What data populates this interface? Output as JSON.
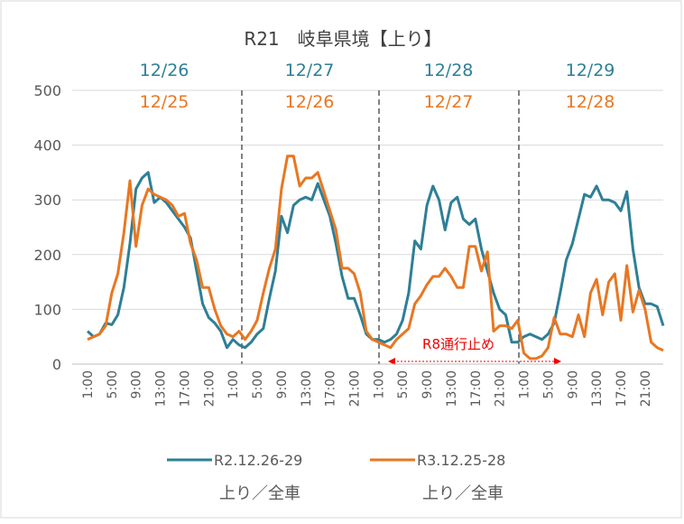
{
  "chart_data": {
    "type": "line",
    "title": "R21　岐阜県境【上り】",
    "categories": [
      "1:00",
      null,
      null,
      null,
      "5:00",
      null,
      null,
      null,
      "9:00",
      null,
      null,
      null,
      "13:00",
      null,
      null,
      null,
      "17:00",
      null,
      null,
      null,
      "21:00",
      null,
      null,
      null,
      "1:00",
      null,
      null,
      null,
      "5:00",
      null,
      null,
      null,
      "9:00",
      null,
      null,
      null,
      "13:00",
      null,
      null,
      null,
      "17:00",
      null,
      null,
      null,
      "21:00",
      null,
      null,
      null,
      "1:00",
      null,
      null,
      null,
      "5:00",
      null,
      null,
      null,
      "9:00",
      null,
      null,
      null,
      "13:00",
      null,
      null,
      null,
      "17:00",
      null,
      null,
      null,
      "21:00",
      null,
      null,
      null,
      "1:00",
      null,
      null,
      null,
      "5:00",
      null,
      null,
      null,
      "9:00",
      null,
      null,
      null,
      "13:00",
      null,
      null,
      null,
      "17:00",
      null,
      null,
      null,
      "21:00",
      null,
      null,
      null
    ],
    "series": [
      {
        "name": "R2.12.26-29",
        "sublabel": "上り／全車",
        "color": "#2e7f96",
        "values": [
          60,
          50,
          55,
          75,
          72,
          90,
          140,
          220,
          320,
          340,
          350,
          295,
          305,
          295,
          280,
          265,
          250,
          230,
          170,
          110,
          85,
          75,
          60,
          30,
          45,
          35,
          30,
          40,
          55,
          65,
          120,
          170,
          270,
          240,
          290,
          300,
          305,
          300,
          330,
          300,
          270,
          220,
          160,
          120,
          120,
          90,
          55,
          45,
          45,
          40,
          45,
          55,
          80,
          130,
          225,
          210,
          290,
          325,
          300,
          245,
          295,
          305,
          265,
          255,
          265,
          210,
          170,
          130,
          100,
          90,
          40,
          40,
          50,
          55,
          50,
          45,
          55,
          75,
          130,
          190,
          220,
          265,
          310,
          305,
          325,
          300,
          300,
          295,
          280,
          315,
          210,
          140,
          110,
          110,
          105,
          70
        ]
      },
      {
        "name": "R3.12.25-28",
        "sublabel": "上り／全車",
        "color": "#e87722",
        "values": [
          45,
          50,
          55,
          70,
          130,
          165,
          240,
          335,
          215,
          290,
          320,
          310,
          305,
          300,
          290,
          270,
          275,
          220,
          190,
          140,
          140,
          100,
          70,
          55,
          50,
          60,
          45,
          60,
          80,
          130,
          175,
          210,
          320,
          380,
          380,
          325,
          340,
          340,
          350,
          315,
          280,
          245,
          175,
          175,
          165,
          130,
          60,
          45,
          40,
          35,
          30,
          45,
          55,
          65,
          110,
          125,
          145,
          160,
          160,
          175,
          160,
          140,
          140,
          215,
          215,
          170,
          205,
          60,
          70,
          70,
          65,
          80,
          20,
          10,
          10,
          15,
          30,
          85,
          55,
          55,
          50,
          90,
          50,
          130,
          155,
          90,
          150,
          165,
          80,
          180,
          95,
          135,
          100,
          40,
          30,
          25
        ]
      }
    ],
    "day_labels": [
      {
        "top": "12/26",
        "bottom": "12/25"
      },
      {
        "top": "12/27",
        "bottom": "12/26"
      },
      {
        "top": "12/28",
        "bottom": "12/27"
      },
      {
        "top": "12/29",
        "bottom": "12/28"
      }
    ],
    "annotation": "R8通行止め",
    "ylim": [
      0,
      500
    ],
    "yticks": [
      0,
      100,
      200,
      300,
      400,
      500
    ],
    "grid": true
  }
}
